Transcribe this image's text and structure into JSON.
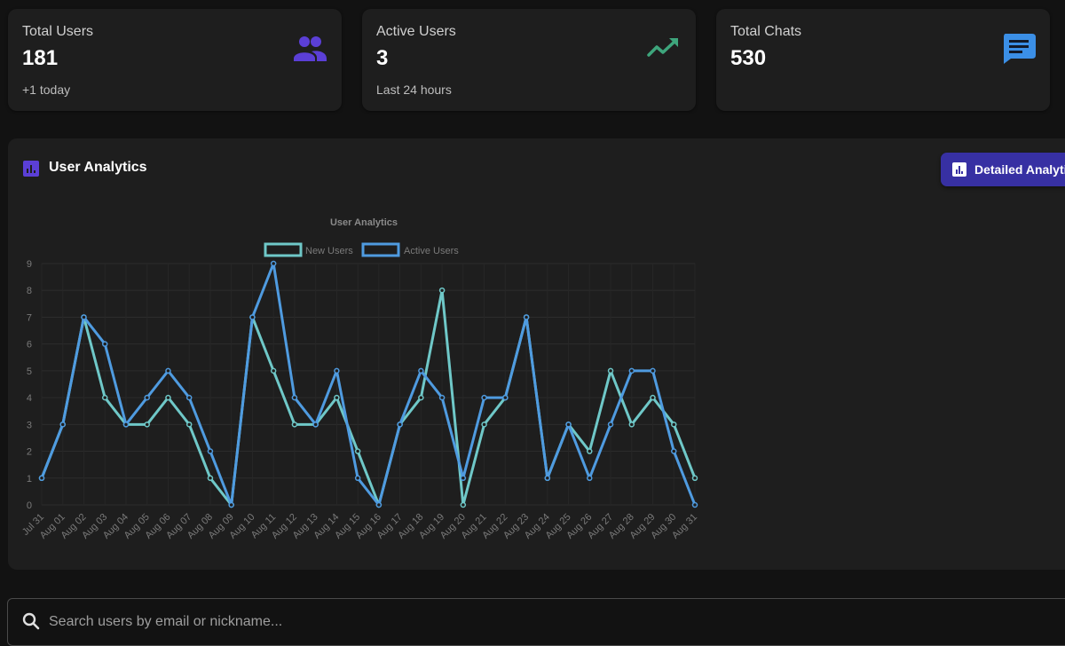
{
  "stats": [
    {
      "label": "Total Users",
      "value": "181",
      "sub": "+1 today",
      "icon": "people-icon",
      "color": "#5b3fd6"
    },
    {
      "label": "Active Users",
      "value": "3",
      "sub": "Last 24 hours",
      "icon": "trending-up-icon",
      "color": "#3ea57c"
    },
    {
      "label": "Total Chats",
      "value": "530",
      "sub": "",
      "icon": "chat-icon",
      "color": "#3b8fe6"
    }
  ],
  "analytics": {
    "title": "User Analytics",
    "detail_button": "Detailed Analyti"
  },
  "chart_data": {
    "type": "line",
    "title": "User Analytics",
    "categories": [
      "Jul 31",
      "Aug 01",
      "Aug 02",
      "Aug 03",
      "Aug 04",
      "Aug 05",
      "Aug 06",
      "Aug 07",
      "Aug 08",
      "Aug 09",
      "Aug 10",
      "Aug 11",
      "Aug 12",
      "Aug 13",
      "Aug 14",
      "Aug 15",
      "Aug 16",
      "Aug 17",
      "Aug 18",
      "Aug 19",
      "Aug 20",
      "Aug 21",
      "Aug 22",
      "Aug 23",
      "Aug 24",
      "Aug 25",
      "Aug 26",
      "Aug 27",
      "Aug 28",
      "Aug 29",
      "Aug 30",
      "Aug 31"
    ],
    "series": [
      {
        "name": "New Users",
        "color": "#6fc8c8",
        "values": [
          1,
          3,
          7,
          4,
          3,
          3,
          4,
          3,
          1,
          0,
          7,
          5,
          3,
          3,
          4,
          2,
          0,
          3,
          4,
          8,
          0,
          3,
          4,
          7,
          1,
          3,
          2,
          5,
          3,
          4,
          3,
          1
        ]
      },
      {
        "name": "Active Users",
        "color": "#4f9be0",
        "values": [
          1,
          3,
          7,
          6,
          3,
          4,
          5,
          4,
          2,
          0,
          7,
          9,
          4,
          3,
          5,
          1,
          0,
          3,
          5,
          4,
          1,
          4,
          4,
          7,
          1,
          3,
          1,
          3,
          5,
          5,
          2,
          0
        ]
      }
    ],
    "ylim": [
      0,
      9
    ],
    "yticks": [
      0,
      1,
      2,
      3,
      4,
      5,
      6,
      7,
      8,
      9
    ],
    "legend": "top",
    "grid": true
  },
  "search": {
    "placeholder": "Search users by email or nickname..."
  }
}
